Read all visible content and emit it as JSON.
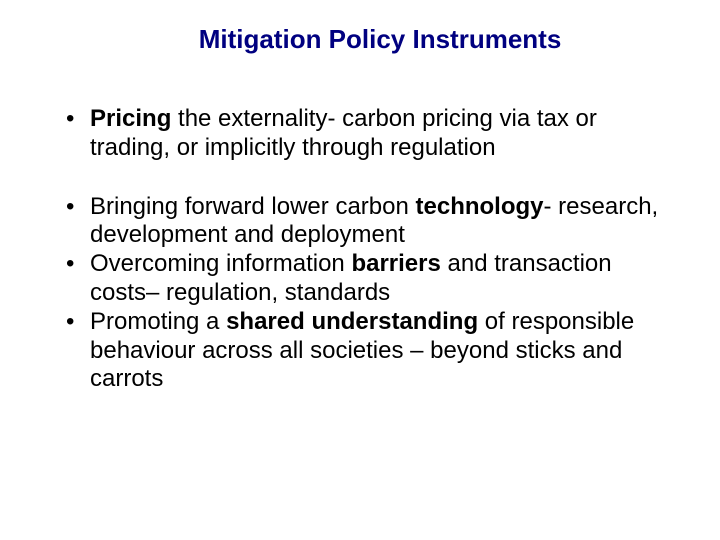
{
  "title_color": "#000080",
  "body_color": "#000000",
  "background_color": "#ffffff",
  "title_fontsize": 26,
  "body_fontsize": 24,
  "title": "Mitigation Policy Instruments",
  "bullets": [
    {
      "segments": [
        {
          "text": "Pricing",
          "bold": true
        },
        {
          "text": " the externality- carbon pricing via tax or trading, or implicitly through regulation",
          "bold": false
        }
      ],
      "gap_after": true
    },
    {
      "segments": [
        {
          "text": "Bringing forward lower carbon ",
          "bold": false
        },
        {
          "text": "technology",
          "bold": true
        },
        {
          "text": "- research, development and deployment",
          "bold": false
        }
      ],
      "gap_after": false
    },
    {
      "segments": [
        {
          "text": "Overcoming information ",
          "bold": false
        },
        {
          "text": "barriers",
          "bold": true
        },
        {
          "text": " and transaction costs– regulation, standards",
          "bold": false
        }
      ],
      "gap_after": false
    },
    {
      "segments": [
        {
          "text": "Promoting a ",
          "bold": false
        },
        {
          "text": "shared understanding",
          "bold": true
        },
        {
          "text": " of responsible behaviour across all societies – beyond sticks and carrots",
          "bold": false
        }
      ],
      "gap_after": false
    }
  ]
}
